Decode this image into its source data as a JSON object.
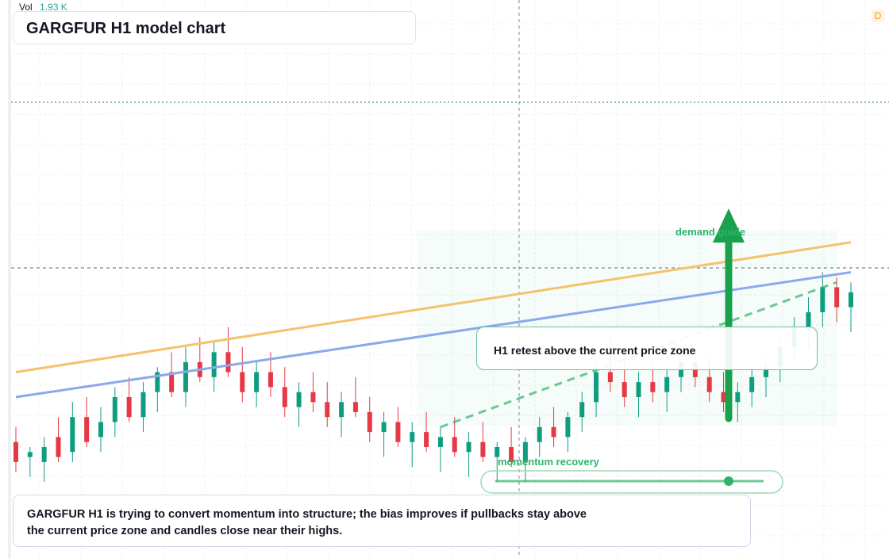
{
  "header": {
    "vol_label": "Vol",
    "vol_value": "1.93 K",
    "timeframe_badge": "D"
  },
  "title": "GARGFUR H1 model chart",
  "annotations": {
    "retest_note": "H1 retest above the current price zone",
    "demand_label": "demand guide",
    "momentum_label": "momentum recovery",
    "commentary": "GARGFUR H1 is trying to convert momentum into structure; the bias improves if pullbacks stay above the current price zone and candles close near their highs."
  },
  "colors": {
    "up": "#0f9d80",
    "down": "#e53945",
    "orange_line": "#f5c26b",
    "blue_line": "#8aa9ea",
    "green_guide": "#2fb36a",
    "arrow": "#1aa14d"
  },
  "chart_data": {
    "type": "candlestick",
    "symbol": "GARGFUR",
    "interval": "H1",
    "ylim": [
      0,
      100
    ],
    "candles": [
      {
        "o": 21,
        "h": 24,
        "l": 15,
        "c": 17
      },
      {
        "o": 18,
        "h": 20,
        "l": 14,
        "c": 19
      },
      {
        "o": 17,
        "h": 22,
        "l": 13,
        "c": 20
      },
      {
        "o": 22,
        "h": 26,
        "l": 17,
        "c": 18
      },
      {
        "o": 19,
        "h": 29,
        "l": 17,
        "c": 26
      },
      {
        "o": 26,
        "h": 30,
        "l": 20,
        "c": 21
      },
      {
        "o": 22,
        "h": 28,
        "l": 19,
        "c": 25
      },
      {
        "o": 25,
        "h": 32,
        "l": 22,
        "c": 30
      },
      {
        "o": 30,
        "h": 34,
        "l": 25,
        "c": 26
      },
      {
        "o": 26,
        "h": 33,
        "l": 23,
        "c": 31
      },
      {
        "o": 31,
        "h": 36,
        "l": 27,
        "c": 35
      },
      {
        "o": 35,
        "h": 39,
        "l": 30,
        "c": 31
      },
      {
        "o": 31,
        "h": 40,
        "l": 28,
        "c": 37
      },
      {
        "o": 37,
        "h": 42,
        "l": 33,
        "c": 34
      },
      {
        "o": 34,
        "h": 41,
        "l": 31,
        "c": 39
      },
      {
        "o": 39,
        "h": 44,
        "l": 34,
        "c": 35
      },
      {
        "o": 35,
        "h": 40,
        "l": 29,
        "c": 31
      },
      {
        "o": 31,
        "h": 37,
        "l": 28,
        "c": 35
      },
      {
        "o": 35,
        "h": 39,
        "l": 30,
        "c": 32
      },
      {
        "o": 32,
        "h": 36,
        "l": 26,
        "c": 28
      },
      {
        "o": 28,
        "h": 33,
        "l": 24,
        "c": 31
      },
      {
        "o": 31,
        "h": 35,
        "l": 27,
        "c": 29
      },
      {
        "o": 29,
        "h": 33,
        "l": 24,
        "c": 26
      },
      {
        "o": 26,
        "h": 31,
        "l": 22,
        "c": 29
      },
      {
        "o": 29,
        "h": 34,
        "l": 26,
        "c": 27
      },
      {
        "o": 27,
        "h": 30,
        "l": 21,
        "c": 23
      },
      {
        "o": 23,
        "h": 27,
        "l": 18,
        "c": 25
      },
      {
        "o": 25,
        "h": 28,
        "l": 20,
        "c": 21
      },
      {
        "o": 21,
        "h": 25,
        "l": 16,
        "c": 23
      },
      {
        "o": 23,
        "h": 27,
        "l": 19,
        "c": 20
      },
      {
        "o": 20,
        "h": 24,
        "l": 15,
        "c": 22
      },
      {
        "o": 22,
        "h": 26,
        "l": 18,
        "c": 19
      },
      {
        "o": 19,
        "h": 23,
        "l": 14,
        "c": 21
      },
      {
        "o": 21,
        "h": 25,
        "l": 17,
        "c": 18
      },
      {
        "o": 18,
        "h": 21,
        "l": 13,
        "c": 20
      },
      {
        "o": 20,
        "h": 24,
        "l": 16,
        "c": 17
      },
      {
        "o": 17,
        "h": 22,
        "l": 13,
        "c": 21
      },
      {
        "o": 21,
        "h": 26,
        "l": 18,
        "c": 24
      },
      {
        "o": 24,
        "h": 28,
        "l": 20,
        "c": 22
      },
      {
        "o": 22,
        "h": 27,
        "l": 19,
        "c": 26
      },
      {
        "o": 26,
        "h": 31,
        "l": 23,
        "c": 29
      },
      {
        "o": 29,
        "h": 37,
        "l": 26,
        "c": 35
      },
      {
        "o": 35,
        "h": 42,
        "l": 31,
        "c": 33
      },
      {
        "o": 33,
        "h": 39,
        "l": 28,
        "c": 30
      },
      {
        "o": 30,
        "h": 35,
        "l": 26,
        "c": 33
      },
      {
        "o": 33,
        "h": 38,
        "l": 29,
        "c": 31
      },
      {
        "o": 31,
        "h": 36,
        "l": 27,
        "c": 34
      },
      {
        "o": 34,
        "h": 39,
        "l": 31,
        "c": 37
      },
      {
        "o": 37,
        "h": 40,
        "l": 32,
        "c": 34
      },
      {
        "o": 34,
        "h": 38,
        "l": 29,
        "c": 31
      },
      {
        "o": 31,
        "h": 35,
        "l": 27,
        "c": 29
      },
      {
        "o": 29,
        "h": 33,
        "l": 25,
        "c": 31
      },
      {
        "o": 31,
        "h": 36,
        "l": 28,
        "c": 34
      },
      {
        "o": 34,
        "h": 38,
        "l": 30,
        "c": 36
      },
      {
        "o": 36,
        "h": 42,
        "l": 33,
        "c": 40
      },
      {
        "o": 40,
        "h": 46,
        "l": 37,
        "c": 44
      },
      {
        "o": 44,
        "h": 50,
        "l": 40,
        "c": 47
      },
      {
        "o": 47,
        "h": 55,
        "l": 44,
        "c": 52
      },
      {
        "o": 52,
        "h": 54,
        "l": 45,
        "c": 48
      },
      {
        "o": 48,
        "h": 53,
        "l": 43,
        "c": 51
      }
    ],
    "overlays": [
      {
        "name": "orange trend line",
        "from": [
          0,
          35
        ],
        "to": [
          59,
          61
        ]
      },
      {
        "name": "blue trend line",
        "from": [
          0,
          30
        ],
        "to": [
          59,
          55
        ]
      },
      {
        "name": "green dashed guide",
        "from": [
          30,
          24
        ],
        "to": [
          58,
          53
        ]
      }
    ]
  }
}
